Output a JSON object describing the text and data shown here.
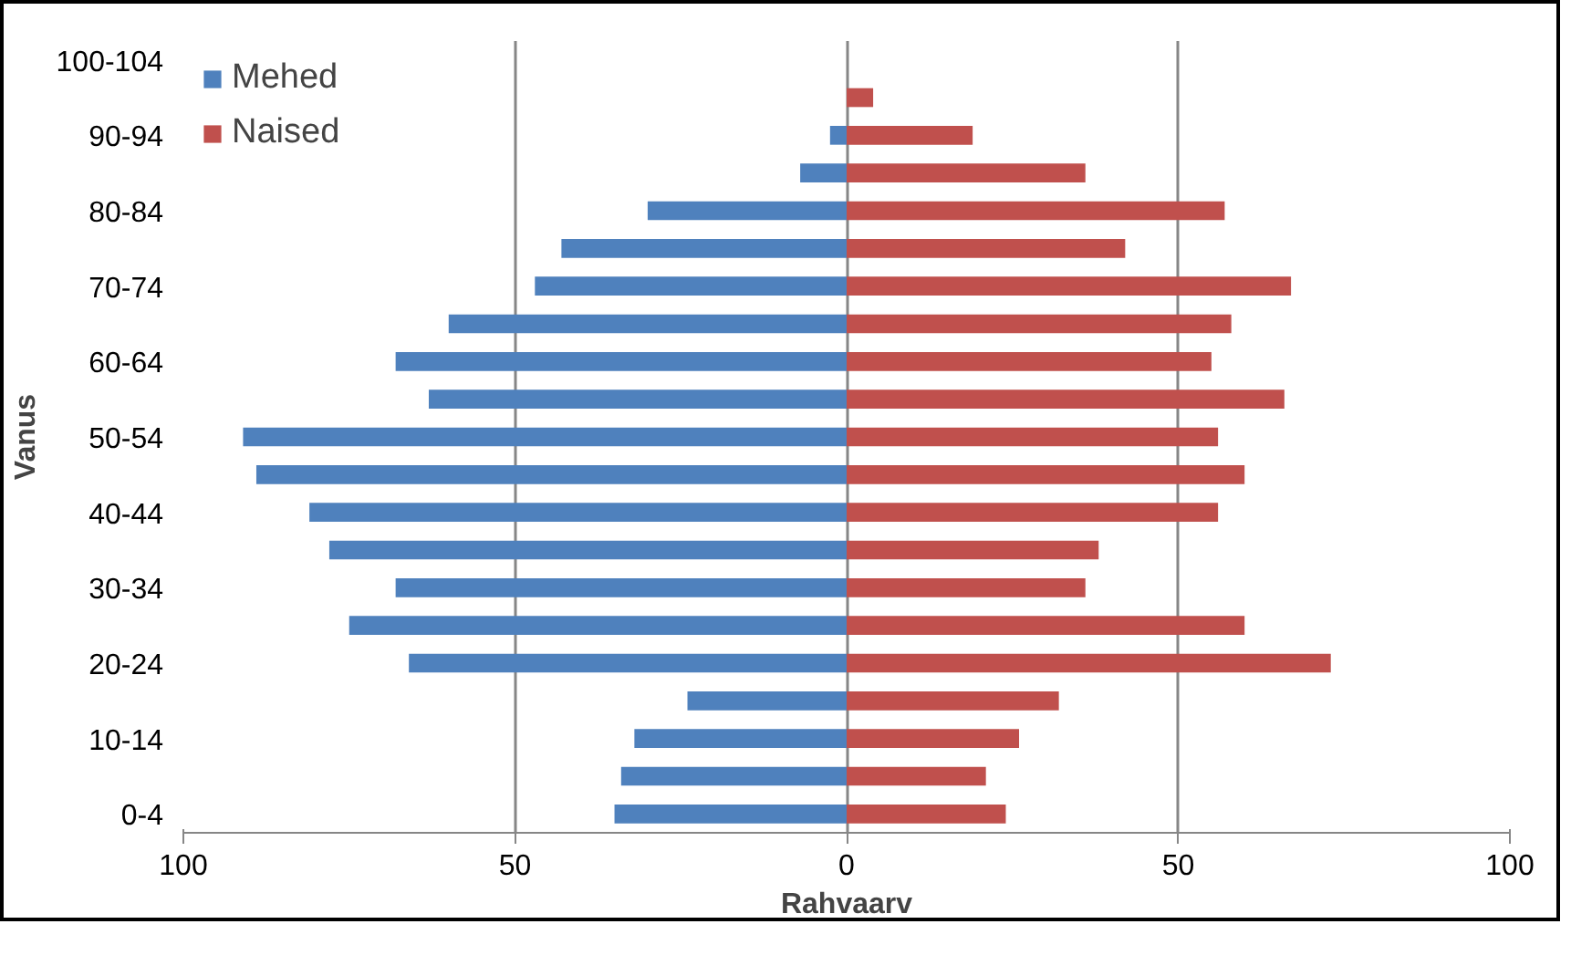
{
  "chart_data": {
    "type": "bar",
    "orientation": "horizontal",
    "xlabel": "Rahvaarv",
    "ylabel": "Vanus",
    "categories": [
      "100-104",
      null,
      "90-94",
      null,
      "80-84",
      null,
      "70-74",
      null,
      "60-64",
      null,
      "50-54",
      null,
      "40-44",
      null,
      "30-34",
      null,
      "20-24",
      null,
      "10-14",
      null,
      "0-4"
    ],
    "series": [
      {
        "name": "Mehed",
        "color": "#4f81bd",
        "values": [
          0,
          0,
          -2.5,
          -7,
          -30,
          -43,
          -47,
          -60,
          -68,
          -63,
          -91,
          -89,
          -81,
          -78,
          -68,
          -75,
          -66,
          -24,
          -32,
          -34,
          -35
        ]
      },
      {
        "name": "Naised",
        "color": "#c0504d",
        "values": [
          0,
          4,
          19,
          36,
          57,
          42,
          67,
          58,
          55,
          66,
          56,
          60,
          56,
          38,
          36,
          60,
          73,
          32,
          26,
          21,
          24
        ]
      }
    ],
    "xlim": [
      -100,
      100
    ],
    "xticks": [
      {
        "value": -100,
        "label": "100"
      },
      {
        "value": -50,
        "label": "50"
      },
      0,
      50,
      100
    ],
    "stacked": true,
    "grid": "x",
    "legend": "top left"
  }
}
